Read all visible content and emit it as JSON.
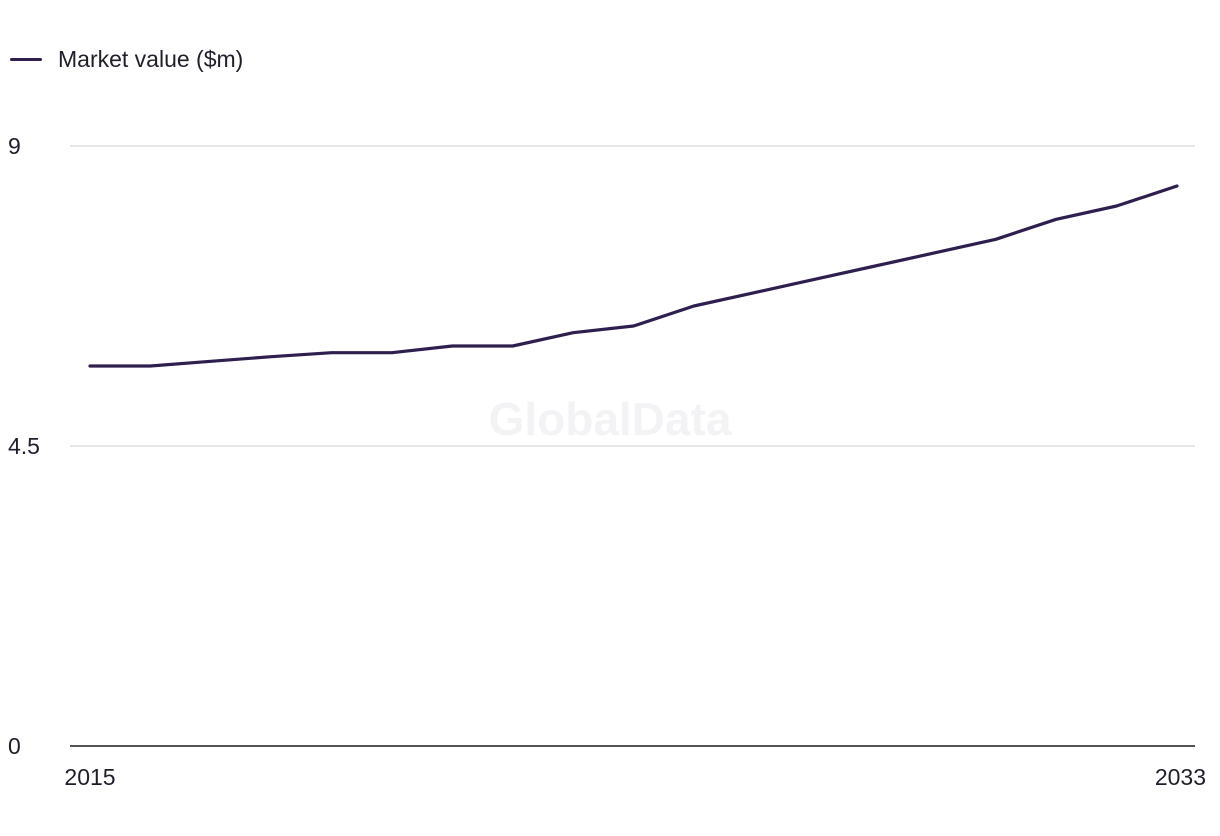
{
  "legend": {
    "label": "Market value ($m)"
  },
  "watermark": "GlobalData",
  "colors": {
    "line": "#2e1f4f",
    "grid": "#d6d6d9",
    "axis": "#1a1a1a"
  },
  "chart_data": {
    "type": "line",
    "title": "",
    "xlabel": "",
    "ylabel": "",
    "x": [
      2015,
      2016,
      2017,
      2018,
      2019,
      2020,
      2021,
      2022,
      2023,
      2024,
      2025,
      2026,
      2027,
      2028,
      2029,
      2030,
      2031,
      2032,
      2033
    ],
    "series": [
      {
        "name": "Market value ($m)",
        "values": [
          5.7,
          5.7,
          5.77,
          5.84,
          5.9,
          5.9,
          6.0,
          6.0,
          6.2,
          6.3,
          6.6,
          6.8,
          7.0,
          7.2,
          7.4,
          7.6,
          7.9,
          8.1,
          8.4
        ]
      }
    ],
    "ylim": [
      0,
      9
    ],
    "yticks": [
      "0",
      "4.5",
      "9"
    ],
    "yticks_values": [
      0,
      4.5,
      9
    ],
    "xticks": [
      "2015",
      "2033"
    ],
    "grid": true,
    "legend_position": "top-left"
  }
}
